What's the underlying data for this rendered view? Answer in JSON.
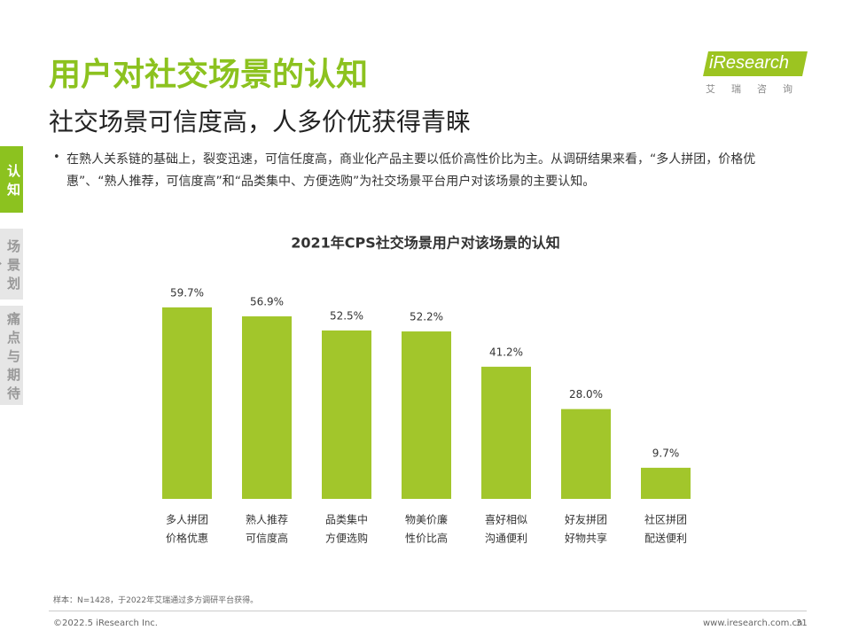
{
  "header": {
    "title": "用户对社交场景的认知",
    "subtitle": "社交场景可信度高，人多价优获得青睐",
    "logo": "iResearch",
    "logo_sub": "艾瑞咨询"
  },
  "tabs": [
    "认知",
    "场景划分",
    "痛点与期待"
  ],
  "bullet": "在熟人关系链的基础上，裂变迅速，可信任度高，商业化产品主要以低价高性价比为主。从调研结果来看，“多人拼团，价格优惠”、“熟人推荐，可信度高”和“品类集中、方便选购”为社交场景平台用户对该场景的主要认知。",
  "chart_data": {
    "type": "bar",
    "title": "2021年CPS社交场景用户对该场景的认知",
    "categories": [
      [
        "多人拼团",
        "价格优惠"
      ],
      [
        "熟人推荐",
        "可信度高"
      ],
      [
        "品类集中",
        "方便选购"
      ],
      [
        "物美价廉",
        "性价比高"
      ],
      [
        "喜好相似",
        "沟通便利"
      ],
      [
        "好友拼团",
        "好物共享"
      ],
      [
        "社区拼团",
        "配送便利"
      ]
    ],
    "values": [
      59.7,
      56.9,
      52.5,
      52.2,
      41.2,
      28.0,
      9.7
    ],
    "value_labels": [
      "59.7%",
      "56.9%",
      "52.5%",
      "52.2%",
      "41.2%",
      "28.0%",
      "9.7%"
    ],
    "color": "#a2c62b"
  },
  "footer": {
    "note": "样本：N=1428，于2022年艾瑞通过多方调研平台获得。",
    "copyright": "©2022.5 iResearch Inc.",
    "site": "www.iresearch.com.cn",
    "page": "31"
  }
}
